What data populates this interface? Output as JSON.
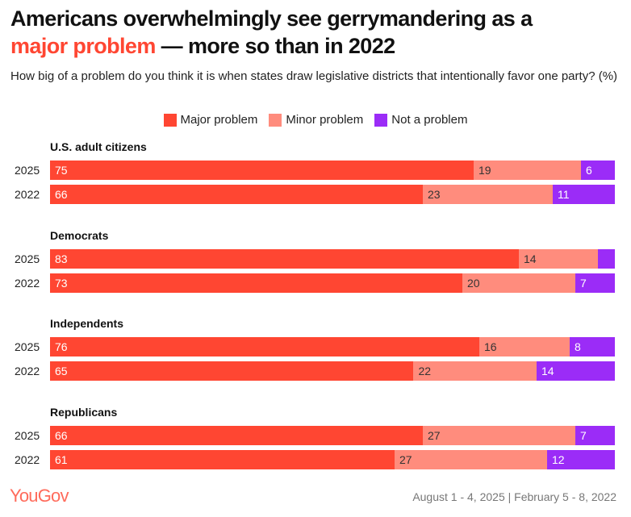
{
  "title": {
    "part1": "Americans overwhelmingly see gerrymandering as a",
    "highlight": "major problem",
    "part2": " — more so than in 2022"
  },
  "subtitle": "How big of a problem do you think it is when states draw legislative districts that intentionally favor one party? (%)",
  "footer": {
    "logo": "YouGov",
    "dates": "August 1 - 4, 2025 | February 5 - 8, 2022"
  },
  "chart_data": {
    "type": "bar",
    "orientation": "horizontal-stacked",
    "xlim": [
      0,
      100
    ],
    "legend": [
      {
        "name": "Major problem",
        "color": "#ff4632"
      },
      {
        "name": "Minor problem",
        "color": "#ff8c7d"
      },
      {
        "name": "Not a problem",
        "color": "#9b2cf7"
      }
    ],
    "text_colors": [
      "#ffffff",
      "#333333",
      "#ffffff"
    ],
    "groups": [
      {
        "name": "U.S. adult citizens",
        "rows": [
          {
            "year": "2025",
            "values": [
              75,
              19,
              6
            ],
            "labels": [
              "75",
              "19",
              "6"
            ]
          },
          {
            "year": "2022",
            "values": [
              66,
              23,
              11
            ],
            "labels": [
              "66",
              "23",
              "11"
            ]
          }
        ]
      },
      {
        "name": "Democrats",
        "rows": [
          {
            "year": "2025",
            "values": [
              83,
              14,
              3
            ],
            "labels": [
              "83",
              "14",
              ""
            ]
          },
          {
            "year": "2022",
            "values": [
              73,
              20,
              7
            ],
            "labels": [
              "73",
              "20",
              "7"
            ]
          }
        ]
      },
      {
        "name": "Independents",
        "rows": [
          {
            "year": "2025",
            "values": [
              76,
              16,
              8
            ],
            "labels": [
              "76",
              "16",
              "8"
            ]
          },
          {
            "year": "2022",
            "values": [
              65,
              22,
              14
            ],
            "labels": [
              "65",
              "22",
              "14"
            ]
          }
        ]
      },
      {
        "name": "Republicans",
        "rows": [
          {
            "year": "2025",
            "values": [
              66,
              27,
              7
            ],
            "labels": [
              "66",
              "27",
              "7"
            ]
          },
          {
            "year": "2022",
            "values": [
              61,
              27,
              12
            ],
            "labels": [
              "61",
              "27",
              "12"
            ]
          }
        ]
      }
    ]
  }
}
